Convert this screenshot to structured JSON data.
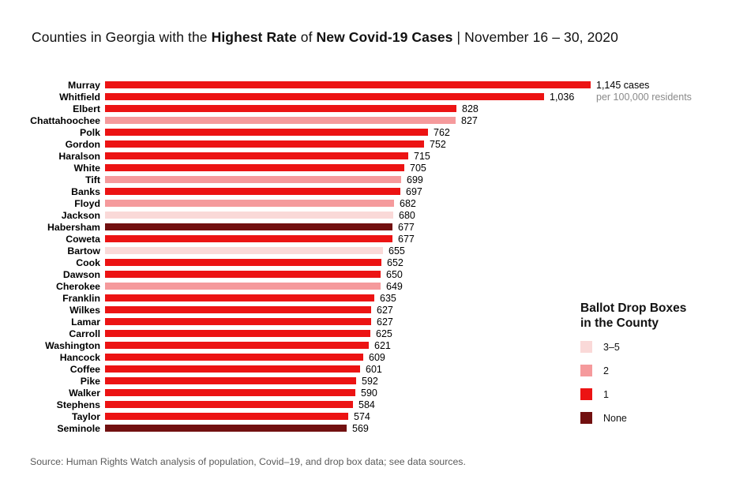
{
  "title": {
    "prefix": "Counties in Georgia with the ",
    "bold1": "Highest Rate",
    "mid": " of ",
    "bold2": "New Covid-19 Cases",
    "separator": " | ",
    "date": "November 16 – 30, 2020"
  },
  "annotation": {
    "line2": "per 100,000 residents"
  },
  "colors": {
    "1": "#EC1313",
    "2": "#F59A9C",
    "3-5": "#FAD9D8",
    "none": "#721010",
    "title_text": "#111111",
    "gray_text": "#8a8a8a",
    "source_text": "#5a5a5a"
  },
  "legend": {
    "title_line1": "Ballot Drop Boxes",
    "title_line2": "in the County",
    "items": [
      {
        "label": "3–5",
        "key": "3-5"
      },
      {
        "label": "2",
        "key": "2"
      },
      {
        "label": "1",
        "key": "1"
      },
      {
        "label": "None",
        "key": "none"
      }
    ]
  },
  "source": "Source: Human Rights Watch analysis of population, Covid–19, and drop box data; see data sources.",
  "chart_data": {
    "type": "bar",
    "orientation": "horizontal",
    "title": "Counties in Georgia with the Highest Rate of New Covid-19 Cases | November 16 – 30, 2020",
    "unit": "new Covid-19 cases per 100,000 residents",
    "xlim": [
      0,
      1145
    ],
    "grid": false,
    "legend_position": "right",
    "legend_title": "Ballot Drop Boxes in the County",
    "categories": [
      "Murray",
      "Whitfield",
      "Elbert",
      "Chattahoochee",
      "Polk",
      "Gordon",
      "Haralson",
      "White",
      "Tift",
      "Banks",
      "Floyd",
      "Jackson",
      "Habersham",
      "Coweta",
      "Bartow",
      "Cook",
      "Dawson",
      "Cherokee",
      "Franklin",
      "Wilkes",
      "Lamar",
      "Carroll",
      "Washington",
      "Hancock",
      "Coffee",
      "Pike",
      "Walker",
      "Stephens",
      "Taylor",
      "Seminole"
    ],
    "values": [
      1145,
      1036,
      828,
      827,
      762,
      752,
      715,
      705,
      699,
      697,
      682,
      680,
      677,
      677,
      655,
      652,
      650,
      649,
      635,
      627,
      627,
      625,
      621,
      609,
      601,
      592,
      590,
      584,
      574,
      569
    ],
    "value_labels": [
      "1,145 cases",
      "1,036",
      "828",
      "827",
      "762",
      "752",
      "715",
      "705",
      "699",
      "697",
      "682",
      "680",
      "677",
      "677",
      "655",
      "652",
      "650",
      "649",
      "635",
      "627",
      "627",
      "625",
      "621",
      "609",
      "601",
      "592",
      "590",
      "584",
      "574",
      "569"
    ],
    "ballot_drop_boxes": [
      "1",
      "1",
      "1",
      "2",
      "1",
      "1",
      "1",
      "1",
      "2",
      "1",
      "2",
      "3-5",
      "none",
      "1",
      "3-5",
      "1",
      "1",
      "2",
      "1",
      "1",
      "1",
      "1",
      "1",
      "1",
      "1",
      "1",
      "1",
      "1",
      "1",
      "none"
    ]
  }
}
